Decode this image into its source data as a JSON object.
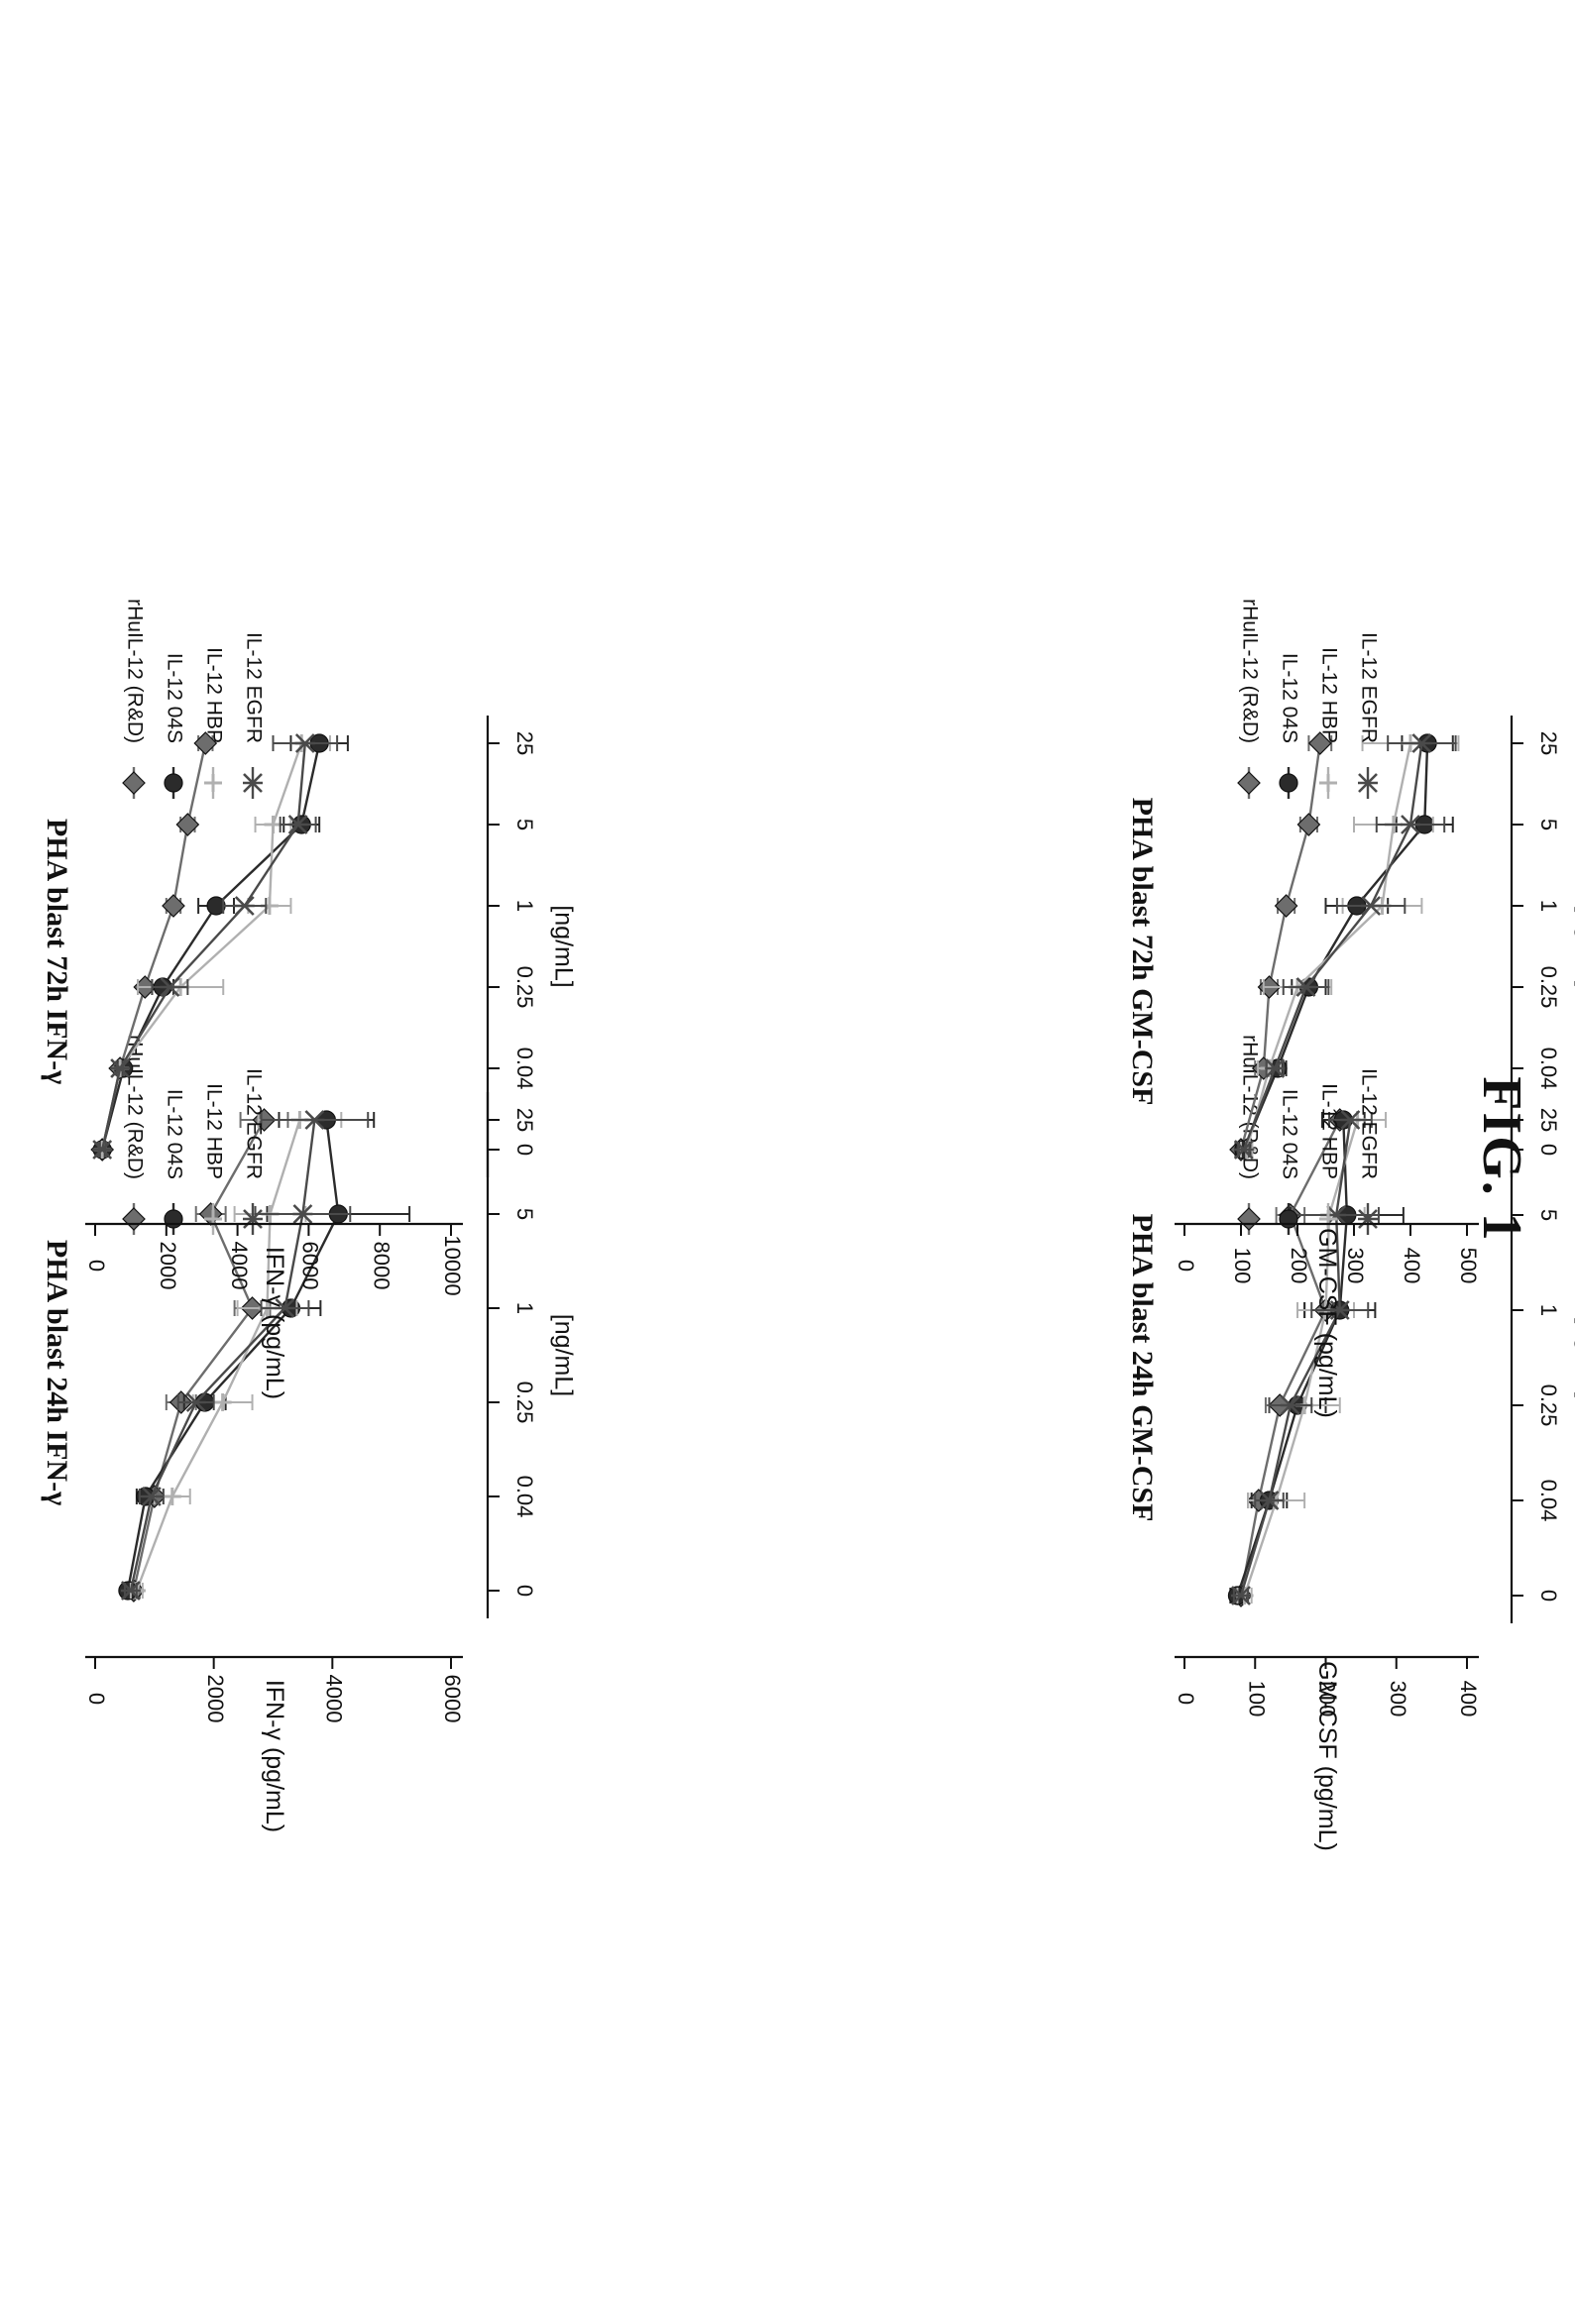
{
  "figure_label": "FIG. 1",
  "series_colors": [
    "#6d6d6d",
    "#2b2b2b",
    "#b0b0b0",
    "#4a4a4a"
  ],
  "chart_data": [
    {
      "type": "line",
      "title": "PHA blast 24h IFN-γ",
      "xlabel": "[ng/mL]",
      "ylabel": "IFN-γ (pg/mL)",
      "x_ticks": [
        "0",
        "0.04",
        "0.25",
        "1",
        "5",
        "25"
      ],
      "y_ticks": [
        "0",
        "2000",
        "4000",
        "6000"
      ],
      "ylim": [
        0,
        6000
      ],
      "grid": false,
      "legend": "right",
      "series": [
        {
          "name": "rHuIL-12 (R&D)",
          "values": [
            650,
            1000,
            1450,
            2650,
            1950,
            2850
          ]
        },
        {
          "name": "IL-12 04S",
          "values": [
            550,
            850,
            1850,
            3300,
            4100,
            3900
          ]
        },
        {
          "name": "IL-12 HBP",
          "values": [
            700,
            1300,
            2150,
            2900,
            2950,
            3450
          ]
        },
        {
          "name": "IL-12 EGFR",
          "values": [
            600,
            950,
            1700,
            3200,
            3500,
            3700
          ]
        }
      ],
      "errors": [
        [
          100,
          150,
          250,
          300,
          250,
          400
        ],
        [
          80,
          150,
          350,
          500,
          1200,
          800
        ],
        [
          100,
          300,
          500,
          500,
          600,
          700
        ],
        [
          100,
          200,
          300,
          400,
          800,
          900
        ]
      ]
    },
    {
      "type": "line",
      "title": "PHA blast 72h IFN-γ",
      "xlabel": "[ng/mL]",
      "ylabel": "IFN-γ (pg/mL)",
      "x_ticks": [
        "0",
        "0.04",
        "0.25",
        "1",
        "5",
        "25"
      ],
      "y_ticks": [
        "0",
        "2000",
        "4000",
        "6000",
        "8000",
        "10000"
      ],
      "ylim": [
        0,
        10000
      ],
      "grid": false,
      "legend": "right",
      "series": [
        {
          "name": "rHuIL-12 (R&D)",
          "values": [
            200,
            700,
            1400,
            2200,
            2600,
            3100
          ]
        },
        {
          "name": "IL-12 04S",
          "values": [
            200,
            800,
            1900,
            3400,
            5800,
            6300
          ]
        },
        {
          "name": "IL-12 HBP",
          "values": [
            200,
            700,
            2400,
            4900,
            5000,
            5800
          ]
        },
        {
          "name": "IL-12 EGFR",
          "values": [
            200,
            700,
            2100,
            4200,
            5700,
            5900
          ]
        }
      ],
      "errors": [
        [
          100,
          100,
          200,
          200,
          200,
          200
        ],
        [
          100,
          100,
          300,
          500,
          500,
          800
        ],
        [
          100,
          100,
          1200,
          600,
          500,
          800
        ],
        [
          100,
          100,
          500,
          600,
          500,
          900
        ]
      ]
    },
    {
      "type": "line",
      "title": "PHA blast 24h GM-CSF",
      "xlabel": "[ng/mL]",
      "ylabel": "GM-CSF (pg/mL)",
      "x_ticks": [
        "0",
        "0.04",
        "0.25",
        "1",
        "5",
        "25"
      ],
      "y_ticks": [
        "0",
        "100",
        "200",
        "300",
        "400"
      ],
      "ylim": [
        0,
        400
      ],
      "grid": false,
      "legend": "right",
      "series": [
        {
          "name": "rHuIL-12 (R&D)",
          "values": [
            80,
            105,
            135,
            200,
            150,
            220
          ]
        },
        {
          "name": "IL-12 04S",
          "values": [
            75,
            120,
            160,
            220,
            230,
            225
          ]
        },
        {
          "name": "IL-12 HBP",
          "values": [
            85,
            130,
            170,
            200,
            205,
            245
          ]
        },
        {
          "name": "IL-12 EGFR",
          "values": [
            80,
            120,
            150,
            220,
            215,
            235
          ]
        }
      ],
      "errors": [
        [
          10,
          15,
          20,
          30,
          20,
          25
        ],
        [
          10,
          25,
          40,
          50,
          80,
          30
        ],
        [
          10,
          40,
          50,
          40,
          50,
          40
        ],
        [
          10,
          20,
          30,
          40,
          60,
          30
        ]
      ]
    },
    {
      "type": "line",
      "title": "PHA blast 72h GM-CSF",
      "xlabel": "[ng/mL]",
      "ylabel": "GM-CSF (pg/mL)",
      "x_ticks": [
        "0",
        "0.04",
        "0.25",
        "1",
        "5",
        "25"
      ],
      "y_ticks": [
        "0",
        "100",
        "200",
        "300",
        "400",
        "500"
      ],
      "ylim": [
        0,
        500
      ],
      "grid": false,
      "legend": "right",
      "series": [
        {
          "name": "rHuIL-12 (R&D)",
          "values": [
            100,
            140,
            150,
            180,
            220,
            240
          ]
        },
        {
          "name": "IL-12 04S",
          "values": [
            105,
            165,
            220,
            305,
            425,
            430
          ]
        },
        {
          "name": "IL-12 HBP",
          "values": [
            110,
            150,
            200,
            350,
            370,
            400
          ]
        },
        {
          "name": "IL-12 EGFR",
          "values": [
            105,
            160,
            215,
            330,
            400,
            420
          ]
        }
      ],
      "errors": [
        [
          10,
          15,
          15,
          15,
          15,
          20
        ],
        [
          10,
          15,
          30,
          55,
          50,
          45
        ],
        [
          10,
          20,
          60,
          70,
          70,
          85
        ],
        [
          10,
          15,
          40,
          60,
          60,
          60
        ]
      ]
    }
  ]
}
